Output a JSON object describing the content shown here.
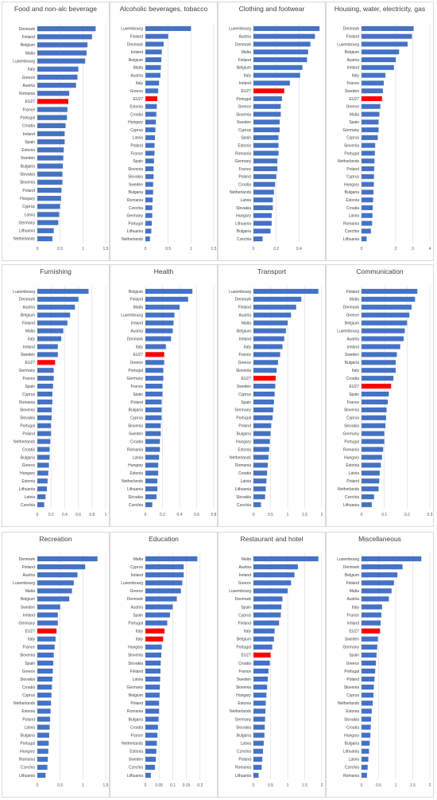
{
  "colors": {
    "bar": "#4472c4",
    "highlight": "#ff0000",
    "grid": "#d9d9d9",
    "text": "#404040"
  },
  "chart_data": [
    {
      "type": "bar",
      "orientation": "horizontal",
      "title": "Food and non-alc beverage",
      "categories": [
        "Denmark",
        "Finland",
        "Belgium",
        "Malta",
        "Luxembourg",
        "Italy",
        "Greece",
        "Austria",
        "Romania",
        "EU27",
        "France",
        "Portugal",
        "Croatia",
        "Ireland",
        "Spain",
        "Estonia",
        "Sweden",
        "Bulgaria",
        "Slovakia",
        "Slovenia",
        "Poland",
        "Hungary",
        "Cyprus",
        "Latvia",
        "Germany",
        "Lithuania",
        "Netherlands"
      ],
      "values": [
        1.28,
        1.2,
        1.1,
        1.08,
        1.05,
        0.9,
        0.88,
        0.85,
        0.7,
        0.68,
        0.66,
        0.65,
        0.62,
        0.6,
        0.6,
        0.58,
        0.57,
        0.56,
        0.55,
        0.55,
        0.53,
        0.52,
        0.5,
        0.48,
        0.46,
        0.36,
        0.33
      ],
      "highlight": "EU27",
      "xlim": [
        0,
        1.5
      ],
      "xticks": [
        "0",
        "0.5",
        "1",
        "1.5"
      ],
      "xtick_values": [
        0,
        0.5,
        1,
        1.5
      ]
    },
    {
      "type": "bar",
      "orientation": "horizontal",
      "title": "Alcoholic beverages, tobacco",
      "categories": [
        "Luxembourg",
        "Finland",
        "Denmark",
        "Ireland",
        "Belgium",
        "Malta",
        "Austria",
        "Italy",
        "Greece",
        "EU27",
        "Estonia",
        "Croatia",
        "Hungary",
        "Cyprus",
        "Latvia",
        "Poland",
        "France",
        "Spain",
        "Slovenia",
        "Slovakia",
        "Sweden",
        "Bulgaria",
        "Romania",
        "Czechia",
        "Germany",
        "Portugal",
        "Lithuania",
        "Netherlands"
      ],
      "values": [
        1.0,
        0.5,
        0.4,
        0.36,
        0.35,
        0.34,
        0.33,
        0.3,
        0.28,
        0.26,
        0.25,
        0.24,
        0.23,
        0.22,
        0.21,
        0.2,
        0.2,
        0.19,
        0.18,
        0.18,
        0.17,
        0.17,
        0.16,
        0.15,
        0.15,
        0.14,
        0.13,
        0.1
      ],
      "highlight": "EU27",
      "xlim": [
        0,
        1.5
      ],
      "xticks": [
        "0",
        "0.5",
        "1",
        "1.5"
      ],
      "xtick_values": [
        0,
        0.5,
        1,
        1.5
      ]
    },
    {
      "type": "bar",
      "orientation": "horizontal",
      "title": "Clothing and footwear",
      "categories": [
        "Luxembourg",
        "Austria",
        "Denmark",
        "Malta",
        "Finland",
        "Belgium",
        "Italy",
        "Ireland",
        "EU27",
        "Portugal",
        "Greece",
        "Slovenia",
        "Sweden",
        "Cyprus",
        "Spain",
        "Estonia",
        "Romania",
        "Germany",
        "France",
        "Poland",
        "Croatia",
        "Netherlands",
        "Latvia",
        "Slovakia",
        "Hungary",
        "Lithuania",
        "Bulgaria",
        "Czechia"
      ],
      "values": [
        0.58,
        0.54,
        0.5,
        0.48,
        0.47,
        0.43,
        0.41,
        0.32,
        0.27,
        0.25,
        0.24,
        0.24,
        0.23,
        0.23,
        0.22,
        0.22,
        0.22,
        0.21,
        0.21,
        0.2,
        0.19,
        0.18,
        0.17,
        0.17,
        0.16,
        0.16,
        0.15,
        0.08
      ],
      "highlight": "EU27",
      "xlim": [
        0,
        0.6
      ],
      "xticks": [
        "0",
        "0.2",
        "0.4"
      ],
      "xtick_values": [
        0,
        0.2,
        0.4
      ]
    },
    {
      "type": "bar",
      "orientation": "horizontal",
      "title": "Housing, water, electricity, gas",
      "categories": [
        "Denmark",
        "Finland",
        "Luxembourg",
        "Belgium",
        "Austria",
        "Ireland",
        "Italy",
        "France",
        "Sweden",
        "EU27",
        "Greece",
        "Malta",
        "Spain",
        "Germany",
        "Cyprus",
        "Slovenia",
        "Portugal",
        "Netherlands",
        "Poland",
        "Cyprus",
        "Hungary",
        "Bulgaria",
        "Estonia",
        "Croatia",
        "Latvia",
        "Romania",
        "Czechia",
        "Lithuania"
      ],
      "values": [
        3.05,
        2.95,
        2.7,
        2.2,
        2.0,
        1.9,
        1.4,
        1.3,
        1.25,
        1.2,
        1.1,
        1.05,
        1.0,
        1.0,
        0.95,
        0.8,
        0.78,
        0.76,
        0.74,
        0.73,
        0.72,
        0.7,
        0.68,
        0.66,
        0.64,
        0.62,
        0.55,
        0.3
      ],
      "highlight": "EU27",
      "xlim": [
        0,
        4
      ],
      "xticks": [
        "0",
        "2",
        "3",
        "4"
      ],
      "xtick_values": [
        0,
        2,
        3,
        4
      ]
    },
    {
      "type": "bar",
      "orientation": "horizontal",
      "title": "Furnishing",
      "categories": [
        "Luxembourg",
        "Denmark",
        "Austria",
        "Belgium",
        "Finland",
        "Malta",
        "Italy",
        "Ireland",
        "Sweden",
        "EU27",
        "Germany",
        "France",
        "Spain",
        "Cyprus",
        "Romania",
        "Slovenia",
        "Slovakia",
        "Portugal",
        "Poland",
        "Netherlands",
        "Croatia",
        "Bulgaria",
        "Greece",
        "Hungary",
        "Estonia",
        "Lithuania",
        "Latvia",
        "Czechia"
      ],
      "values": [
        0.75,
        0.6,
        0.55,
        0.48,
        0.44,
        0.38,
        0.35,
        0.3,
        0.3,
        0.26,
        0.24,
        0.24,
        0.23,
        0.22,
        0.22,
        0.21,
        0.21,
        0.2,
        0.2,
        0.19,
        0.18,
        0.18,
        0.17,
        0.16,
        0.15,
        0.14,
        0.12,
        0.1
      ],
      "highlight": "EU27",
      "xlim": [
        0,
        1
      ],
      "xticks": [
        "0",
        "0.2",
        "0.4",
        "0.6",
        "0.8",
        "1"
      ],
      "xtick_values": [
        0,
        0.2,
        0.4,
        0.6,
        0.8,
        1
      ]
    },
    {
      "type": "bar",
      "orientation": "horizontal",
      "title": "Health",
      "categories": [
        "Belgium",
        "Finland",
        "Malta",
        "Luxembourg",
        "Ireland",
        "Austria",
        "Denmark",
        "Italy",
        "EU27",
        "Greece",
        "Portugal",
        "Germany",
        "France",
        "Spain",
        "Poland",
        "Bulgaria",
        "Cyprus",
        "Slovenia",
        "Sweden",
        "Croatia",
        "Romania",
        "Latvia",
        "Hungary",
        "Estonia",
        "Netherlands",
        "Lithuania",
        "Slovakia",
        "Czechia"
      ],
      "values": [
        0.55,
        0.5,
        0.4,
        0.34,
        0.33,
        0.32,
        0.3,
        0.24,
        0.22,
        0.22,
        0.21,
        0.21,
        0.2,
        0.2,
        0.19,
        0.19,
        0.19,
        0.18,
        0.18,
        0.17,
        0.17,
        0.16,
        0.15,
        0.15,
        0.14,
        0.14,
        0.13,
        0.08
      ],
      "highlight": "EU27",
      "xlim": [
        0,
        0.8
      ],
      "xticks": [
        "0",
        "0.2",
        "0.4",
        "0.6",
        "0.8"
      ],
      "xtick_values": [
        0,
        0.2,
        0.4,
        0.6,
        0.8
      ]
    },
    {
      "type": "bar",
      "orientation": "horizontal",
      "title": "Transport",
      "categories": [
        "Luxembourg",
        "Denmark",
        "Finland",
        "Austria",
        "Malta",
        "Belgium",
        "Ireland",
        "Italy",
        "France",
        "Greece",
        "Slovenia",
        "EU27",
        "Sweden",
        "Cyprus",
        "Spain",
        "Germany",
        "Portugal",
        "Poland",
        "Bulgaria",
        "Hungary",
        "Estonia",
        "Netherlands",
        "Romania",
        "Croatia",
        "Latvia",
        "Lithuania",
        "Slovakia",
        "Czechia"
      ],
      "values": [
        1.9,
        1.4,
        1.25,
        1.1,
        1.0,
        0.95,
        0.9,
        0.85,
        0.78,
        0.72,
        0.68,
        0.65,
        0.64,
        0.62,
        0.6,
        0.58,
        0.56,
        0.52,
        0.5,
        0.48,
        0.46,
        0.44,
        0.42,
        0.4,
        0.38,
        0.36,
        0.34,
        0.22
      ],
      "highlight": "EU27",
      "xlim": [
        0,
        2
      ],
      "xticks": [
        "0",
        "0.5",
        "1",
        "1.5",
        "2"
      ],
      "xtick_values": [
        0,
        0.5,
        1,
        1.5,
        2
      ]
    },
    {
      "type": "bar",
      "orientation": "horizontal",
      "title": "Communication",
      "categories": [
        "Finland",
        "Malta",
        "Denmark",
        "Greece",
        "Belgium",
        "Luxembourg",
        "Austria",
        "Ireland",
        "Sweden",
        "Bulgaria",
        "Italy",
        "Croatia",
        "EU27",
        "Spain",
        "France",
        "Slovenia",
        "Cyprus",
        "Slovakia",
        "Germany",
        "Portugal",
        "Romania",
        "Hungary",
        "Estonia",
        "Latvia",
        "Poland",
        "Netherlands",
        "Czechia",
        "Lithuania"
      ],
      "values": [
        0.245,
        0.235,
        0.22,
        0.21,
        0.2,
        0.19,
        0.185,
        0.17,
        0.155,
        0.15,
        0.15,
        0.14,
        0.13,
        0.12,
        0.115,
        0.11,
        0.108,
        0.105,
        0.1,
        0.1,
        0.095,
        0.09,
        0.085,
        0.08,
        0.078,
        0.075,
        0.055,
        0.045
      ],
      "highlight": "EU27",
      "xlim": [
        0,
        0.3
      ],
      "xticks": [
        "0",
        "0.1",
        "0.2",
        "0.3"
      ],
      "xtick_values": [
        0,
        0.1,
        0.2,
        0.3
      ]
    },
    {
      "type": "bar",
      "orientation": "horizontal",
      "title": "Recreation",
      "categories": [
        "Denmark",
        "Finland",
        "Austria",
        "Luxembourg",
        "Malta",
        "Belgium",
        "Sweden",
        "Ireland",
        "Germany",
        "EU27",
        "Italy",
        "France",
        "Slovenia",
        "Spain",
        "Greece",
        "Slovakia",
        "Croatia",
        "Cyprus",
        "Netherlands",
        "Estonia",
        "Poland",
        "Latvia",
        "Bulgaria",
        "Portugal",
        "Hungary",
        "Romania",
        "Czechia",
        "Lithuania"
      ],
      "values": [
        1.32,
        1.05,
        0.88,
        0.8,
        0.76,
        0.7,
        0.5,
        0.45,
        0.45,
        0.42,
        0.4,
        0.38,
        0.36,
        0.35,
        0.34,
        0.33,
        0.32,
        0.31,
        0.3,
        0.29,
        0.28,
        0.27,
        0.26,
        0.25,
        0.24,
        0.23,
        0.22,
        0.18
      ],
      "highlight": "EU27",
      "xlim": [
        0,
        1.5
      ],
      "xticks": [
        "0",
        "0.5",
        "1",
        "1.5"
      ],
      "xtick_values": [
        0,
        0.5,
        1,
        1.5
      ]
    },
    {
      "type": "bar",
      "orientation": "horizontal",
      "title": "Education",
      "categories": [
        "Malta",
        "Cyprus",
        "Ireland",
        "Luxembourg",
        "Greece",
        "Denmark",
        "Austria",
        "Spain",
        "Portugal",
        "Italy",
        "Italy",
        "Hungary",
        "Slovenia",
        "Slovakia",
        "Finland",
        "Latvia",
        "Germany",
        "Belgium",
        "Poland",
        "Romania",
        "Bulgaria",
        "Croatia",
        "France",
        "Netherlands",
        "Estonia",
        "Sweden",
        "Czechia",
        "Lithuania"
      ],
      "values": [
        0.19,
        0.14,
        0.14,
        0.135,
        0.13,
        0.115,
        0.1,
        0.09,
        0.08,
        0.07,
        0.065,
        0.06,
        0.058,
        0.056,
        0.055,
        0.054,
        0.053,
        0.052,
        0.05,
        0.05,
        0.048,
        0.046,
        0.044,
        0.042,
        0.04,
        0.038,
        0.035,
        0.02
      ],
      "highlight": "Italy",
      "xlim": [
        0,
        0.25
      ],
      "xticks": [
        "0",
        "0.05",
        "0.1",
        "0.15",
        "0.2"
      ],
      "xtick_values": [
        0,
        0.05,
        0.1,
        0.15,
        0.2
      ]
    },
    {
      "type": "bar",
      "orientation": "horizontal",
      "title": "Restaurant and hotel",
      "categories": [
        "Malta",
        "Austria",
        "Ireland",
        "Greece",
        "Luxembourg",
        "Denmark",
        "Spain",
        "Cyprus",
        "Finland",
        "Italy",
        "Belgium",
        "Portugal",
        "EU27",
        "Croatia",
        "France",
        "Sweden",
        "Slovenia",
        "Hungary",
        "Estonia",
        "Netherlands",
        "Germany",
        "Slovakia",
        "Bulgaria",
        "Latvia",
        "Czechia",
        "Poland",
        "Romania",
        "Lithuania"
      ],
      "values": [
        1.9,
        1.3,
        1.2,
        1.1,
        1.0,
        0.85,
        0.82,
        0.8,
        0.75,
        0.62,
        0.6,
        0.55,
        0.5,
        0.48,
        0.44,
        0.42,
        0.4,
        0.38,
        0.36,
        0.35,
        0.34,
        0.33,
        0.32,
        0.3,
        0.28,
        0.26,
        0.24,
        0.15
      ],
      "highlight": "EU27",
      "xlim": [
        0,
        2
      ],
      "xticks": [
        "0",
        "0.5",
        "1",
        "1.5",
        "2"
      ],
      "xtick_values": [
        0,
        0.5,
        1,
        1.5,
        2
      ]
    },
    {
      "type": "bar",
      "orientation": "horizontal",
      "title": "Miscellaneous",
      "categories": [
        "Luxembourg",
        "Denmark",
        "Belgium",
        "Finland",
        "Malta",
        "Austria",
        "Italy",
        "France",
        "Ireland",
        "EU27",
        "Sweden",
        "Germany",
        "Spain",
        "Greece",
        "Portugal",
        "Poland",
        "Slovenia",
        "Cyprus",
        "Netherlands",
        "Estonia",
        "Slovakia",
        "Croatia",
        "Hungary",
        "Bulgaria",
        "Lithuania",
        "Latvia",
        "Czechia",
        "Romania"
      ],
      "values": [
        1.75,
        1.2,
        1.05,
        0.95,
        0.88,
        0.8,
        0.6,
        0.58,
        0.56,
        0.54,
        0.48,
        0.46,
        0.44,
        0.42,
        0.4,
        0.38,
        0.36,
        0.35,
        0.33,
        0.3,
        0.28,
        0.27,
        0.26,
        0.24,
        0.22,
        0.2,
        0.18,
        0.16
      ],
      "highlight": "EU27",
      "xlim": [
        0,
        2
      ],
      "xticks": [
        "0",
        "0.5",
        "1",
        "1.5",
        "2"
      ],
      "xtick_values": [
        0,
        0.5,
        1,
        1.5,
        2
      ]
    }
  ]
}
